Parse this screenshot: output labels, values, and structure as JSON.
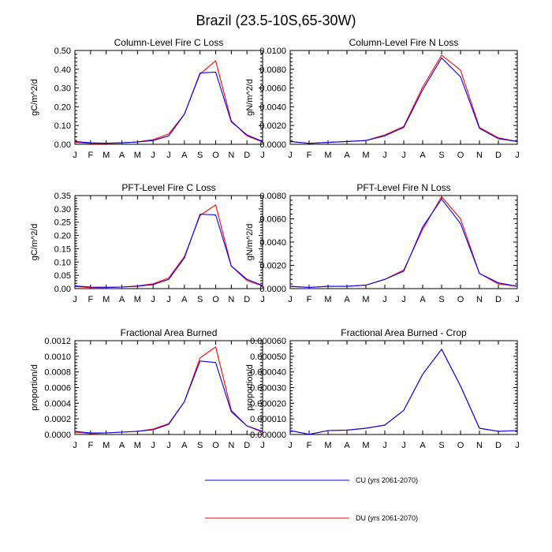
{
  "figure_title": "Brazil (23.5-10S,65-30W)",
  "colors": {
    "cu": "#0000ff",
    "du": "#ff0000"
  },
  "legend": [
    {
      "key": "cu",
      "label": "CU (yrs 2061-2070)"
    },
    {
      "key": "du",
      "label": "DU (yrs 2061-2070)"
    }
  ],
  "chart_data": [
    {
      "type": "line",
      "title": "Column-Level Fire C Loss",
      "ylabel": "gC/m^2/d",
      "x_ticks": [
        "J",
        "F",
        "M",
        "A",
        "M",
        "J",
        "J",
        "A",
        "S",
        "O",
        "N",
        "D",
        "J"
      ],
      "y_ticks": [
        "0.00",
        "0.10",
        "0.20",
        "0.30",
        "0.40",
        "0.50"
      ],
      "ylim": [
        0,
        0.5
      ],
      "series": [
        {
          "name": "CU (yrs 2061-2070)",
          "key": "cu",
          "values": [
            0.015,
            0.008,
            0.006,
            0.008,
            0.012,
            0.02,
            0.045,
            0.16,
            0.38,
            0.385,
            0.12,
            0.05,
            0.015
          ]
        },
        {
          "name": "DU (yrs 2061-2070)",
          "key": "du",
          "values": [
            0.01,
            0.005,
            0.005,
            0.007,
            0.013,
            0.025,
            0.055,
            0.16,
            0.375,
            0.445,
            0.125,
            0.045,
            0.012
          ]
        }
      ]
    },
    {
      "type": "line",
      "title": "Column-Level Fire N Loss",
      "ylabel": "gN/m^2/d",
      "x_ticks": [
        "J",
        "F",
        "M",
        "A",
        "M",
        "J",
        "J",
        "A",
        "S",
        "O",
        "N",
        "D",
        "J"
      ],
      "y_ticks": [
        "0.0000",
        "0.0020",
        "0.0040",
        "0.0060",
        "0.0080",
        "0.0100"
      ],
      "ylim": [
        0,
        0.01
      ],
      "series": [
        {
          "name": "CU (yrs 2061-2070)",
          "key": "cu",
          "values": [
            0.0003,
            0.0001,
            0.0002,
            0.0003,
            0.0004,
            0.0009,
            0.0018,
            0.0058,
            0.0092,
            0.0072,
            0.0017,
            0.0006,
            0.0003
          ]
        },
        {
          "name": "DU (yrs 2061-2070)",
          "key": "du",
          "values": [
            0.0003,
            0.0001,
            0.0002,
            0.0003,
            0.0004,
            0.001,
            0.0019,
            0.0061,
            0.0095,
            0.0079,
            0.0018,
            0.0007,
            0.0003
          ]
        }
      ]
    },
    {
      "type": "line",
      "title": "PFT-Level Fire C Loss",
      "ylabel": "gC/m^2/d",
      "x_ticks": [
        "J",
        "F",
        "M",
        "A",
        "M",
        "J",
        "J",
        "A",
        "S",
        "O",
        "N",
        "D",
        "J"
      ],
      "y_ticks": [
        "0.00",
        "0.05",
        "0.10",
        "0.15",
        "0.20",
        "0.25",
        "0.30",
        "0.35"
      ],
      "ylim": [
        0,
        0.35
      ],
      "series": [
        {
          "name": "CU (yrs 2061-2070)",
          "key": "cu",
          "values": [
            0.01,
            0.006,
            0.005,
            0.006,
            0.009,
            0.015,
            0.035,
            0.115,
            0.28,
            0.277,
            0.085,
            0.035,
            0.012
          ]
        },
        {
          "name": "DU (yrs 2061-2070)",
          "key": "du",
          "values": [
            0.008,
            0.004,
            0.004,
            0.006,
            0.01,
            0.018,
            0.04,
            0.12,
            0.275,
            0.315,
            0.085,
            0.03,
            0.01
          ]
        }
      ]
    },
    {
      "type": "line",
      "title": "PFT-Level Fire N Loss",
      "ylabel": "gN/m^2/d",
      "x_ticks": [
        "J",
        "F",
        "M",
        "A",
        "M",
        "J",
        "J",
        "A",
        "S",
        "O",
        "N",
        "D",
        "J"
      ],
      "y_ticks": [
        "0.0000",
        "0.0020",
        "0.0040",
        "0.0060",
        "0.0080"
      ],
      "ylim": [
        0,
        0.008
      ],
      "series": [
        {
          "name": "CU (yrs 2061-2070)",
          "key": "cu",
          "values": [
            0.0002,
            0.0001,
            0.0002,
            0.0002,
            0.0003,
            0.0008,
            0.0015,
            0.0053,
            0.0077,
            0.0056,
            0.0013,
            0.0005,
            0.0002
          ]
        },
        {
          "name": "DU (yrs 2061-2070)",
          "key": "du",
          "values": [
            0.0002,
            0.0001,
            0.0002,
            0.0002,
            0.0003,
            0.0008,
            0.0016,
            0.0051,
            0.0079,
            0.006,
            0.0013,
            0.0004,
            0.0002
          ]
        }
      ]
    },
    {
      "type": "line",
      "title": "Fractional Area Burned",
      "ylabel": "proportion/d",
      "x_ticks": [
        "J",
        "F",
        "M",
        "A",
        "M",
        "J",
        "J",
        "A",
        "S",
        "O",
        "N",
        "D",
        "J"
      ],
      "y_ticks": [
        "0.0000",
        "0.0002",
        "0.0004",
        "0.0006",
        "0.0008",
        "0.0010",
        "0.0012"
      ],
      "ylim": [
        0,
        0.0012
      ],
      "series": [
        {
          "name": "CU (yrs 2061-2070)",
          "key": "cu",
          "values": [
            4e-05,
            2e-05,
            2e-05,
            3e-05,
            4e-05,
            6e-05,
            0.00013,
            0.00042,
            0.00094,
            0.00092,
            0.00029,
            0.00011,
            4e-05
          ]
        },
        {
          "name": "DU (yrs 2061-2070)",
          "key": "du",
          "values": [
            3e-05,
            1e-05,
            2e-05,
            3e-05,
            4e-05,
            7e-05,
            0.00014,
            0.00042,
            0.00098,
            0.00112,
            0.00031,
            0.00011,
            3e-05
          ]
        }
      ]
    },
    {
      "type": "line",
      "title": "Fractional Area Burned - Crop",
      "ylabel": "proportion/d",
      "x_ticks": [
        "J",
        "F",
        "M",
        "A",
        "M",
        "J",
        "J",
        "A",
        "S",
        "O",
        "N",
        "D",
        "J"
      ],
      "y_ticks": [
        "0.000000",
        "0.000010",
        "0.000020",
        "0.000030",
        "0.000040",
        "0.000050",
        "0.000060"
      ],
      "ylim": [
        0,
        6e-05
      ],
      "series": [
        {
          "name": "CU (yrs 2061-2070)",
          "key": "cu",
          "values": [
            2.5e-06,
            1e-07,
            2.5e-06,
            2.8e-06,
            4e-06,
            6e-06,
            1.55e-05,
            3.85e-05,
            5.45e-05,
            3.1e-05,
            4e-06,
            2e-06,
            2.5e-06
          ]
        },
        {
          "name": "DU (yrs 2061-2070)",
          "key": "du",
          "values": [
            2.5e-06,
            1e-07,
            2.5e-06,
            2.8e-06,
            4e-06,
            6e-06,
            1.55e-05,
            3.85e-05,
            5.45e-05,
            3.1e-05,
            4e-06,
            2e-06,
            2.5e-06
          ]
        }
      ]
    }
  ]
}
